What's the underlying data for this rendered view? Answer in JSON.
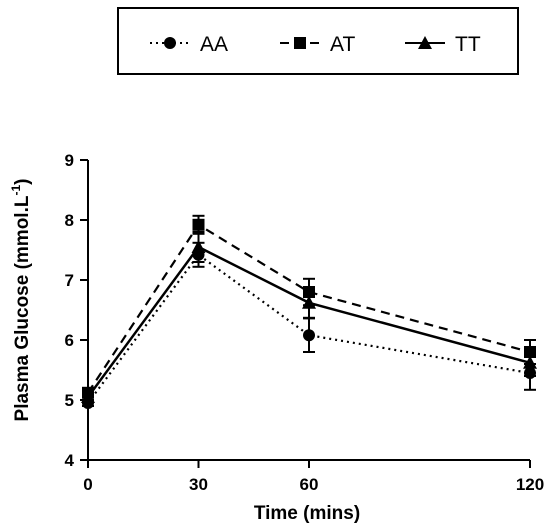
{
  "chart_data": {
    "type": "line",
    "xlabel": "Time (mins)",
    "ylabel": "Plasma Glucose (mmol.L",
    "ylabel_superscript": "-1",
    "ylabel_suffix": ")",
    "x": [
      0,
      30,
      60,
      120
    ],
    "xticks": [
      0,
      30,
      60,
      120
    ],
    "yticks": [
      4,
      5,
      6,
      7,
      8,
      9
    ],
    "xlim": [
      0,
      120
    ],
    "ylim": [
      4,
      9
    ],
    "grid": false,
    "legend_position": "top",
    "series": [
      {
        "name": "AA",
        "marker": "circle",
        "line": "dotted",
        "values": [
          4.95,
          7.42,
          6.08,
          5.45
        ],
        "errors": [
          0.05,
          0.2,
          0.28,
          0.28
        ]
      },
      {
        "name": "AT",
        "marker": "square",
        "line": "dashed",
        "values": [
          5.12,
          7.92,
          6.8,
          5.8
        ],
        "errors": [
          0.06,
          0.15,
          0.22,
          0.2
        ]
      },
      {
        "name": "TT",
        "marker": "triangle",
        "line": "solid",
        "values": [
          5.05,
          7.55,
          6.62,
          5.62
        ],
        "errors": [
          0.05,
          0.25,
          0.25,
          0.22
        ]
      }
    ]
  }
}
